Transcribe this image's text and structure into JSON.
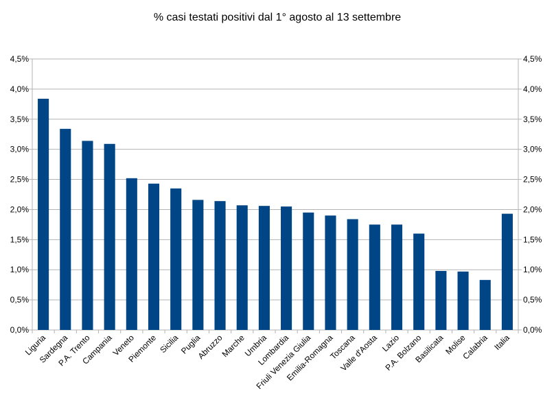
{
  "chart_data": {
    "type": "bar",
    "title": "% casi testati positivi dal 1° agosto al 13 settembre",
    "xlabel": "",
    "ylabel": "",
    "categories": [
      "Liguria",
      "Sardegna",
      "P.A. Trento",
      "Campania",
      "Veneto",
      "Piemonte",
      "Sicilia",
      "Puglia",
      "Abruzzo",
      "Marche",
      "Umbria",
      "Lombardia",
      "Friuli Venezia Giulia",
      "Emilia-Romagna",
      "Toscana",
      "Valle d'Aosta",
      "Lazio",
      "P.A. Bolzano",
      "Basilicata",
      "Molise",
      "Calabria",
      "Italia"
    ],
    "values": [
      3.84,
      3.34,
      3.14,
      3.09,
      2.52,
      2.43,
      2.35,
      2.16,
      2.14,
      2.07,
      2.06,
      2.05,
      1.95,
      1.9,
      1.84,
      1.75,
      1.75,
      1.6,
      0.98,
      0.97,
      0.83,
      1.93
    ],
    "ylim": [
      0,
      4.5
    ],
    "y_ticks": [
      "0,0%",
      "0,5%",
      "1,0%",
      "1,5%",
      "2,0%",
      "2,5%",
      "3,0%",
      "3,5%",
      "4,0%",
      "4,5%"
    ],
    "y_ticks_right": [
      "0,0%",
      "0,5%",
      "1,0%",
      "1,5%",
      "2,0%",
      "2,5%",
      "3,0%",
      "3,5%",
      "4,0%",
      "4,5%"
    ],
    "grid": true,
    "legend": "none",
    "colors": {
      "bar": "#004586",
      "grid": "#b3b3b3",
      "axis": "#b3b3b3"
    }
  }
}
